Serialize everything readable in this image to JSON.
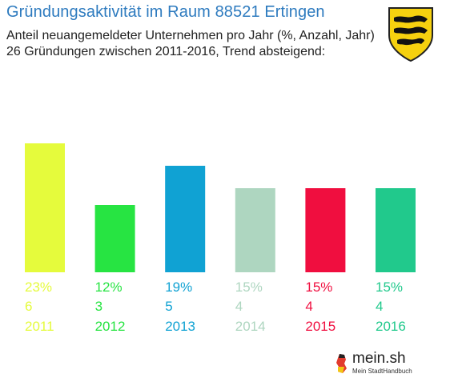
{
  "header": {
    "title": "Gründungsaktivität im Raum 88521 Ertingen",
    "subtitle_line1": "Anteil neuangemeldeter Unternehmen pro Jahr (%, Anzahl, Jahr)",
    "subtitle_line2": "26 Gründungen zwischen 2011-2016, Trend absteigend:"
  },
  "logo": {
    "name": "mein.sh",
    "tagline": "Mein StadtHandbuch"
  },
  "crest_icon": "baden-wuerttemberg-coat-of-arms-icon",
  "chart_data": {
    "type": "bar",
    "title": "",
    "xlabel": "",
    "ylabel": "",
    "categories": [
      "2011",
      "2012",
      "2013",
      "2014",
      "2015",
      "2016"
    ],
    "percent_labels": [
      "23%",
      "12%",
      "19%",
      "15%",
      "15%",
      "15%"
    ],
    "counts": [
      6,
      3,
      5,
      4,
      4,
      4
    ],
    "values": [
      23,
      12,
      19,
      15,
      15,
      15
    ],
    "colors": [
      "#e5fb3c",
      "#27e442",
      "#10a2d3",
      "#aed6c0",
      "#f00e3f",
      "#21c98c"
    ],
    "ylim": [
      0,
      23
    ],
    "grid": false,
    "legend": "none"
  }
}
